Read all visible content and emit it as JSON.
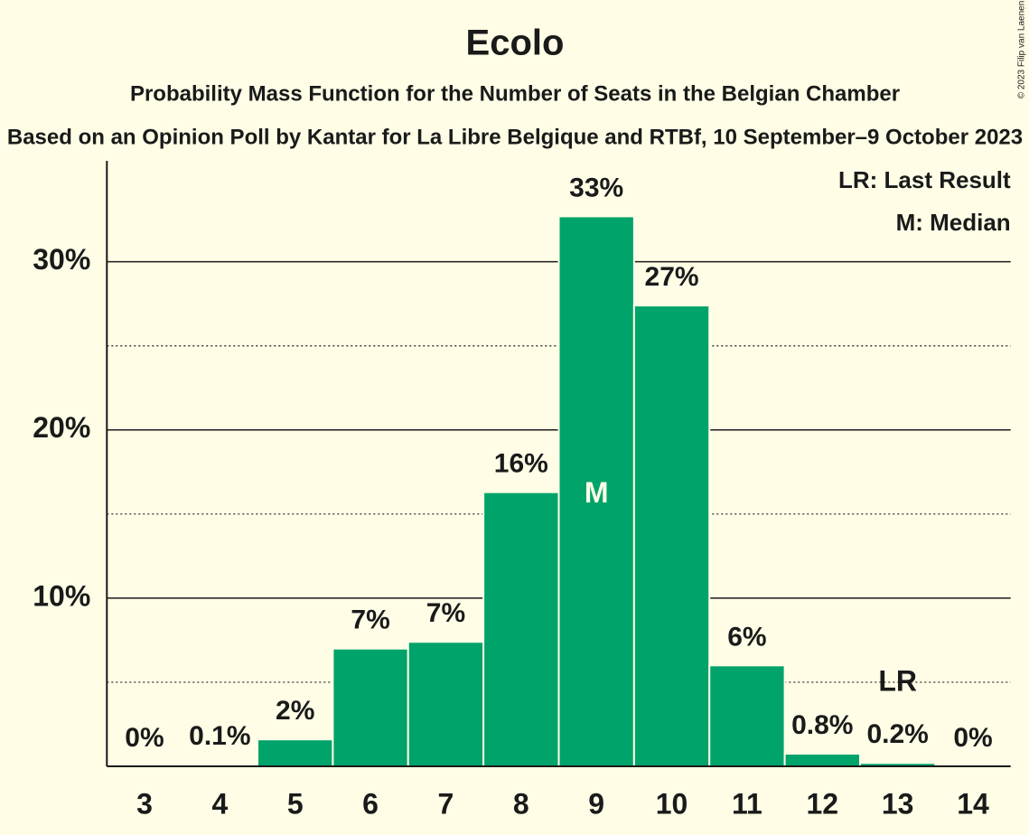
{
  "chart_data": {
    "type": "bar",
    "title": "Ecolo",
    "subtitle": "Probability Mass Function for the Number of Seats in the Belgian Chamber",
    "subtitle2": "Based on an Opinion Poll by Kantar for La Libre Belgique and RTBf, 10 September–9 October 2023",
    "copyright": "© 2023 Filip van Laenen",
    "x": [
      3,
      4,
      5,
      6,
      7,
      8,
      9,
      10,
      11,
      12,
      13,
      14
    ],
    "values": [
      0,
      0.1,
      1.6,
      7.0,
      7.4,
      16.3,
      32.7,
      27.4,
      6.0,
      0.75,
      0.2,
      0
    ],
    "value_labels": [
      "0%",
      "0.1%",
      "2%",
      "7%",
      "7%",
      "16%",
      "33%",
      "27%",
      "6%",
      "0.8%",
      "0.2%",
      "0%"
    ],
    "color": "#00a36a",
    "ylim": [
      0,
      36
    ],
    "yticks": [
      {
        "value": 10,
        "label": "10%"
      },
      {
        "value": 20,
        "label": "20%"
      },
      {
        "value": 30,
        "label": "30%"
      }
    ],
    "minor_yticks": [
      5,
      15,
      25
    ],
    "grid": true,
    "annotations": [
      {
        "label": "M",
        "x": 9
      },
      {
        "label": "LR",
        "x": 13
      }
    ],
    "legend": [
      "LR: Last Result",
      "M: Median"
    ],
    "legend_position": "top-right"
  }
}
